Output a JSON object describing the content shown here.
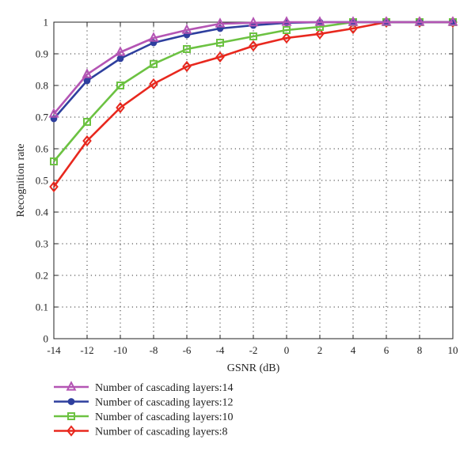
{
  "chart_data": {
    "type": "line",
    "title": "",
    "xlabel": "GSNR (dB)",
    "ylabel": "Recognition rate",
    "xlim": [
      -14,
      10
    ],
    "ylim": [
      0,
      1
    ],
    "x_ticks": [
      "-14",
      "-12",
      "-10",
      "-8",
      "-6",
      "-4",
      "-2",
      "0",
      "2",
      "4",
      "6",
      "8",
      "10"
    ],
    "y_ticks": [
      "0",
      "0.1",
      "0.2",
      "0.3",
      "0.4",
      "0.5",
      "0.6",
      "0.7",
      "0.8",
      "0.9",
      "1"
    ],
    "grid": true,
    "legend_position": "bottom-left, outside plot",
    "x": [
      -14,
      -12,
      -10,
      -8,
      -6,
      -4,
      -2,
      0,
      2,
      4,
      6,
      8,
      10
    ],
    "series": [
      {
        "name": "Number of cascading layers:14",
        "color": "#b455b4",
        "marker": "triangle",
        "values": [
          0.71,
          0.835,
          0.905,
          0.95,
          0.975,
          0.995,
          0.998,
          1.0,
          1.0,
          1.0,
          1.0,
          1.0,
          1.0
        ]
      },
      {
        "name": "Number of cascading layers:12",
        "color": "#2e3f9e",
        "marker": "circle",
        "values": [
          0.695,
          0.815,
          0.885,
          0.935,
          0.96,
          0.98,
          0.99,
          0.998,
          1.0,
          1.0,
          1.0,
          1.0,
          1.0
        ]
      },
      {
        "name": "Number of cascading layers:10",
        "color": "#6cc242",
        "marker": "square",
        "values": [
          0.56,
          0.685,
          0.8,
          0.868,
          0.915,
          0.935,
          0.955,
          0.975,
          0.985,
          1.0,
          1.0,
          1.0,
          1.0
        ]
      },
      {
        "name": "Number of cascading layers:8",
        "color": "#e8281e",
        "marker": "diamond",
        "values": [
          0.48,
          0.625,
          0.73,
          0.805,
          0.86,
          0.89,
          0.925,
          0.95,
          0.963,
          0.98,
          1.0,
          1.0,
          1.0
        ]
      }
    ]
  }
}
